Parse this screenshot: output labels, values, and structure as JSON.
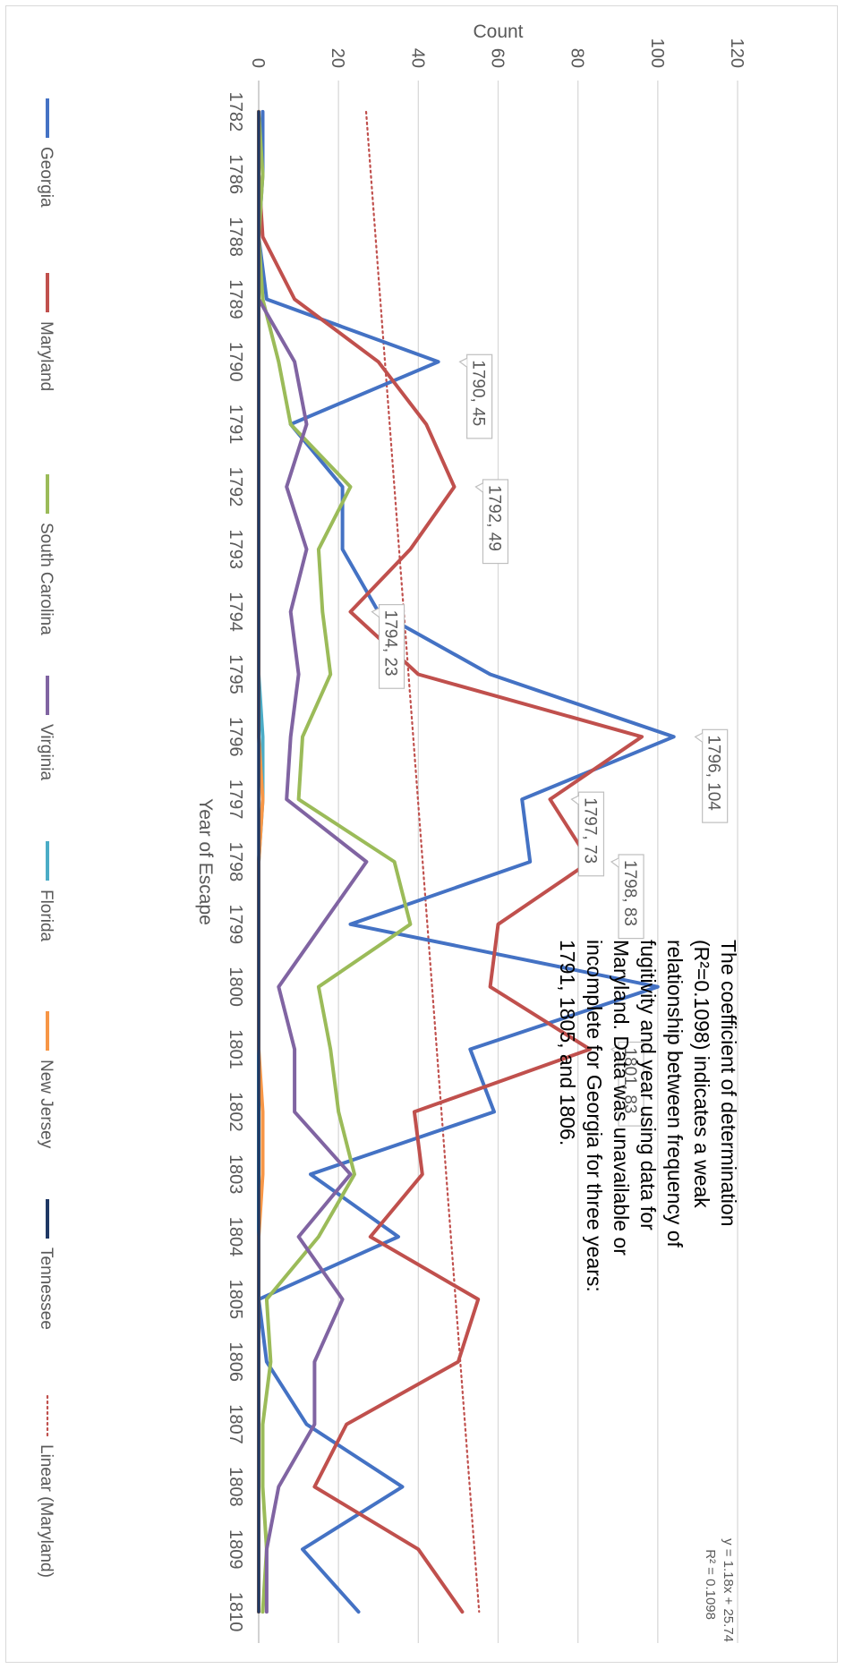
{
  "chart_data": {
    "type": "line",
    "categories": [
      "1782",
      "1786",
      "1788",
      "1789",
      "1790",
      "1791",
      "1792",
      "1793",
      "1794",
      "1795",
      "1796",
      "1797",
      "1798",
      "1799",
      "1800",
      "1801",
      "1802",
      "1803",
      "1804",
      "1805",
      "1806",
      "1807",
      "1808",
      "1809",
      "1810"
    ],
    "xlabel": "Year  of Escape",
    "ylabel": "Count",
    "ylim": [
      0,
      120
    ],
    "yticks": [
      "0",
      "20",
      "40",
      "60",
      "80",
      "100",
      "120"
    ],
    "grid": true,
    "orientation": "rotated 90 degrees clockwise",
    "legend_position": "bottom",
    "series": [
      {
        "name": "Georgia",
        "color": "#4472c4",
        "values": [
          1,
          1,
          0,
          2,
          45,
          8,
          21,
          21,
          30,
          58,
          104,
          66,
          68,
          23,
          100,
          53,
          59,
          13,
          35,
          0,
          2,
          12,
          36,
          11,
          25
        ]
      },
      {
        "name": "Maryland",
        "color": "#c0504d",
        "values": [
          0,
          0,
          1,
          9,
          30,
          42,
          49,
          38,
          23,
          40,
          96,
          73,
          83,
          60,
          58,
          83,
          39,
          41,
          28,
          55,
          50,
          22,
          14,
          40,
          51
        ]
      },
      {
        "name": "South Carolina",
        "color": "#9bbb59",
        "values": [
          0,
          1,
          0,
          1,
          5,
          8,
          23,
          15,
          16,
          18,
          11,
          10,
          34,
          38,
          15,
          18,
          20,
          24,
          15,
          2,
          3,
          1,
          1,
          2,
          1
        ]
      },
      {
        "name": "Virginia",
        "color": "#8064a2",
        "values": [
          0,
          0,
          0,
          0,
          9,
          12,
          7,
          12,
          8,
          10,
          8,
          7,
          27,
          16,
          5,
          9,
          9,
          23,
          10,
          21,
          14,
          14,
          5,
          2,
          2
        ]
      },
      {
        "name": "Florida",
        "color": "#4bacc6",
        "values": [
          0,
          0,
          0,
          0,
          0,
          0,
          0,
          0,
          0,
          0,
          1,
          1,
          0,
          0,
          0,
          0,
          0,
          0,
          0,
          0,
          0,
          0,
          0,
          0,
          0
        ]
      },
      {
        "name": "New Jersey",
        "color": "#f79646",
        "values": [
          0,
          0,
          0,
          0,
          0,
          0,
          0,
          0,
          0,
          0,
          0,
          1,
          0,
          0,
          0,
          0,
          1,
          1,
          0,
          0,
          0,
          0,
          0,
          0,
          0
        ]
      },
      {
        "name": "Tennessee",
        "color": "#1f3864",
        "values": [
          0,
          0,
          0,
          0,
          0,
          0,
          0,
          0,
          0,
          0,
          0,
          0,
          0,
          0,
          0,
          0,
          0,
          0,
          0,
          0,
          0,
          0,
          0,
          0,
          0
        ]
      }
    ],
    "trendline": {
      "name": "Linear (Maryland)",
      "color": "#c0504d",
      "equation": "y = 1.18x + 25.74",
      "r2_label": "R² = 0.1098",
      "start": 26.92,
      "end": 55.24
    },
    "data_labels": [
      {
        "category": "1790",
        "value": 45,
        "text": "1790, 45"
      },
      {
        "category": "1792",
        "value": 49,
        "text": "1792, 49"
      },
      {
        "category": "1794",
        "value": 23,
        "text": "1794, 23"
      },
      {
        "category": "1796",
        "value": 104,
        "text": "1796, 104"
      },
      {
        "category": "1797",
        "value": 73,
        "text": "1797, 73"
      },
      {
        "category": "1798",
        "value": 83,
        "text": "1798, 83"
      },
      {
        "category": "1801",
        "value": 83,
        "text": "1801, 83"
      }
    ],
    "annotation": [
      "The coefficient of determination",
      "(R²=0.1098) indicates  a weak",
      "relationship between frequency of",
      "fugitivity and year using data for",
      "Maryland.  Data was unavailable or",
      "incomplete for Georgia for three years:",
      "1791, 1805, and 1806."
    ]
  }
}
